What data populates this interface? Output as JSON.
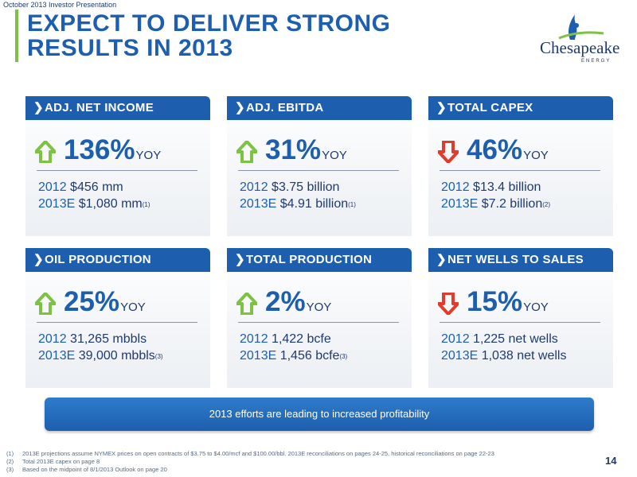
{
  "top_label": "October 2013 Investor Presentation",
  "title_line1": "EXPECT TO DELIVER STRONG",
  "title_line2": "RESULTS IN 2013",
  "logo": {
    "name": "Chesapeake",
    "sub": "ENERGY"
  },
  "colors": {
    "brand_blue": "#1d5fae",
    "up_green": "#7dc242",
    "down_red": "#e23a2c"
  },
  "cards": [
    {
      "header": "ADJ. NET INCOME",
      "direction": "up",
      "icon": "up-arrow-icon",
      "pct": "136%",
      "yoy": "YOY",
      "y2012_label": "2012",
      "y2012_value": " $456 mm",
      "y2013_label": "2013E",
      "y2013_value": " $1,080 mm",
      "note": "(1)"
    },
    {
      "header": "ADJ. EBITDA",
      "direction": "up",
      "icon": "up-arrow-icon",
      "pct": "31%",
      "yoy": "YOY",
      "y2012_label": "2012",
      "y2012_value": " $3.75 billion",
      "y2013_label": "2013E",
      "y2013_value": " $4.91 billion",
      "note": "(1)"
    },
    {
      "header": "TOTAL CAPEX",
      "direction": "down",
      "icon": "down-arrow-icon",
      "pct": "46%",
      "yoy": "YOY",
      "y2012_label": "2012",
      "y2012_value": " $13.4 billion",
      "y2013_label": "2013E",
      "y2013_value": " $7.2 billion",
      "note": "(2)"
    },
    {
      "header": "OIL PRODUCTION",
      "direction": "up",
      "icon": "up-arrow-icon",
      "pct": "25%",
      "yoy": "YOY",
      "y2012_label": "2012",
      "y2012_value": " 31,265 mbbls",
      "y2013_label": "2013E",
      "y2013_value": " 39,000 mbbls",
      "note": "(3)"
    },
    {
      "header": "TOTAL PRODUCTION",
      "direction": "up",
      "icon": "up-arrow-icon",
      "pct": "2%",
      "yoy": "YOY",
      "y2012_label": "2012",
      "y2012_value": " 1,422 bcfe",
      "y2013_label": "2013E",
      "y2013_value": " 1,456 bcfe",
      "note": "(3)"
    },
    {
      "header": "NET WELLS TO SALES",
      "direction": "down",
      "icon": "down-arrow-icon",
      "pct": "15%",
      "yoy": "YOY",
      "y2012_label": "2012",
      "y2012_value": " 1,225 net wells",
      "y2013_label": "2013E",
      "y2013_value": " 1,038 net wells",
      "note": ""
    }
  ],
  "banner": "2013 efforts are leading to increased profitability",
  "footnotes": [
    {
      "num": "(1)",
      "text": "2013E projections assume NYMEX prices on open contracts of $3.75 to $4.00/mcf and $100.00/bbl. 2013E reconciliations on pages 24-25, historical reconciliations on page 22-23"
    },
    {
      "num": "(2)",
      "text": "Total 2013E capex on page 8"
    },
    {
      "num": "(3)",
      "text": "Based on the midpoint of 8/1/2013 Outlook on page 20"
    }
  ],
  "page_number": "14"
}
